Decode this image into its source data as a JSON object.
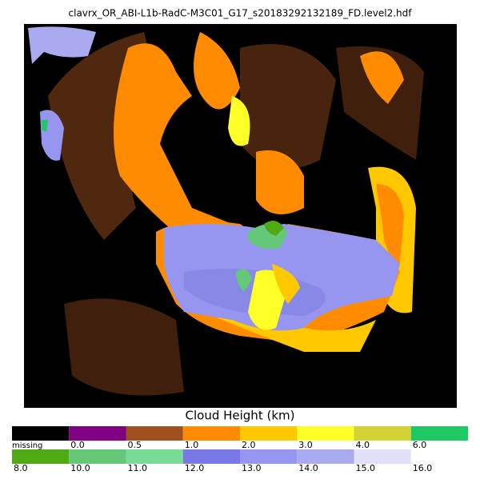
{
  "title": "clavrx_OR_ABI-L1b-RadC-M3C01_G17_s20183292132189_FD.level2.hdf",
  "colorbar": {
    "label": "Cloud Height (km)",
    "rows": [
      {
        "labels": [
          "missing",
          "0.0",
          "0.5",
          "1.0",
          "2.0",
          "3.0",
          "4.0",
          "6.0"
        ],
        "colors": [
          "#000000",
          "#820082",
          "#a0501e",
          "#ff8c00",
          "#ffc800",
          "#ffff28",
          "#d2d232",
          "#1ec864"
        ]
      },
      {
        "labels": [
          "8.0",
          "10.0",
          "11.0",
          "12.0",
          "13.0",
          "14.0",
          "15.0",
          "16.0"
        ],
        "colors": [
          "#50aa14",
          "#64c878",
          "#78dc96",
          "#7878e6",
          "#9696f0",
          "#aaaaf0",
          "#e0e0fa"
        ]
      }
    ]
  }
}
